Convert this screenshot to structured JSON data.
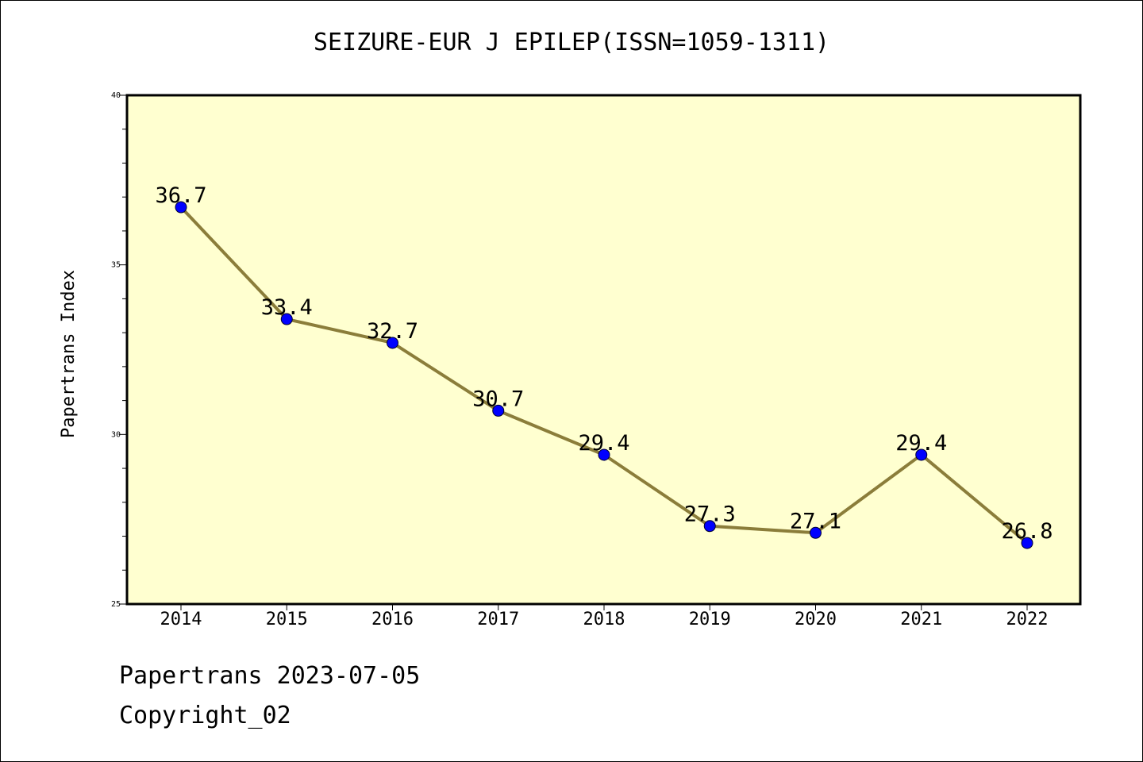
{
  "chart_data": {
    "type": "line",
    "title": "SEIZURE-EUR J EPILEP(ISSN=1059-1311)",
    "xlabel": "",
    "ylabel": "Papertrans Index",
    "categories": [
      "2014",
      "2015",
      "2016",
      "2017",
      "2018",
      "2019",
      "2020",
      "2021",
      "2022"
    ],
    "series": [
      {
        "values": [
          36.7,
          33.4,
          32.7,
          30.7,
          29.4,
          27.3,
          27.1,
          29.4,
          26.8
        ],
        "data_labels": [
          "36.7",
          "33.4",
          "32.7",
          "30.7",
          "29.4",
          "27.3",
          "27.1",
          "29.4",
          "26.8"
        ]
      }
    ],
    "ylim": [
      25,
      40
    ],
    "y_ticks": [
      25,
      30,
      35,
      40
    ],
    "y_tick_labels": [
      "25",
      "30",
      "35",
      "40"
    ],
    "grid": false,
    "legend": "none",
    "colors": {
      "plot_background": "#ffffd0",
      "line": "#8b7d3a",
      "marker": "#0000ff",
      "axis": "#000000"
    }
  },
  "footer": {
    "source": "Papertrans 2023-07-05",
    "copyright": "Copyright_02"
  }
}
